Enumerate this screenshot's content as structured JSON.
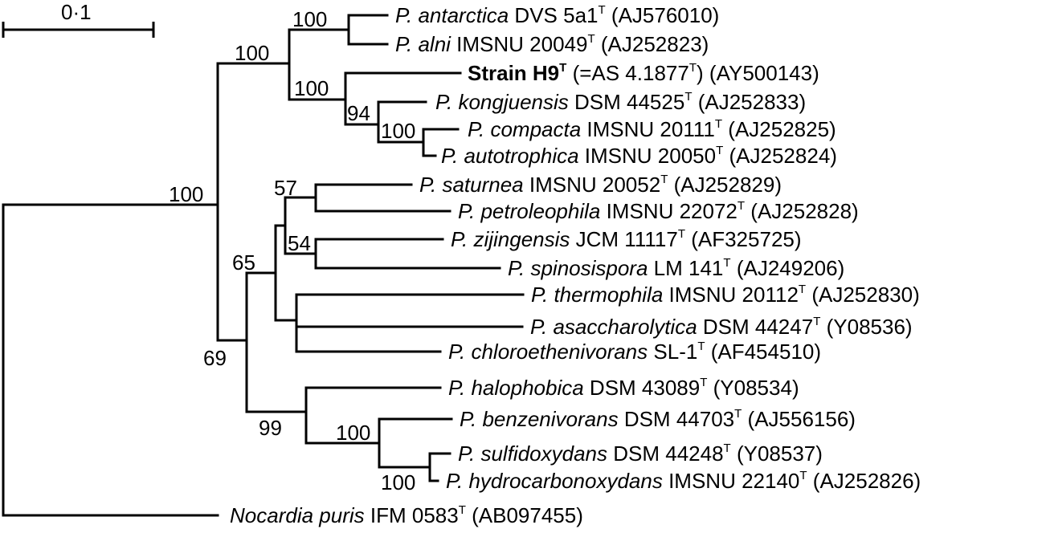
{
  "scale_bar": {
    "label": "0·1"
  },
  "bootstrap": {
    "b_root_upper": "100",
    "b_group1": "100",
    "b_antarctica_alni": "100",
    "b_h9_clade": "100",
    "b_kong_clade": "94",
    "b_compacta_auto": "100",
    "b_lower_clade": "69",
    "b_mid_clade": "65",
    "b_saturn_spino": "57",
    "b_ziji_spino": "54",
    "b_halo_clade": "99",
    "b_benz_clade": "100",
    "b_sulf_hydro": "100"
  },
  "taxa": [
    {
      "id": "antarctica",
      "genus": "P.",
      "species": "antarctica",
      "strain": "DVS 5a1",
      "type_mark": "T",
      "accession": "(AJ576010)"
    },
    {
      "id": "alni",
      "genus": "P.",
      "species": "alni",
      "strain": "IMSNU 20049",
      "type_mark": "T",
      "accession": "(AJ252823)"
    },
    {
      "id": "h9",
      "name": "Strain H9",
      "type_mark": "T",
      "eq_open": "(=AS 4.1877",
      "eq_close": ")",
      "accession": "(AY500143)"
    },
    {
      "id": "kongjuensis",
      "genus": "P.",
      "species": "kongjuensis",
      "strain": "DSM 44525",
      "type_mark": "T",
      "accession": "(AJ252833)"
    },
    {
      "id": "compacta",
      "genus": "P.",
      "species": "compacta",
      "strain": "IMSNU 20111",
      "type_mark": "T",
      "accession": "(AJ252825)"
    },
    {
      "id": "autotrophica",
      "genus": "P.",
      "species": "autotrophica",
      "strain": "IMSNU 20050",
      "type_mark": "T",
      "accession": "(AJ252824)"
    },
    {
      "id": "saturnea",
      "genus": "P.",
      "species": "saturnea",
      "strain": "IMSNU 20052",
      "type_mark": "T",
      "accession": "(AJ252829)"
    },
    {
      "id": "petroleophila",
      "genus": "P.",
      "species": "petroleophila",
      "strain": "IMSNU 22072",
      "type_mark": "T",
      "accession": "(AJ252828)"
    },
    {
      "id": "zijingensis",
      "genus": "P.",
      "species": "zijingensis",
      "strain": "JCM 11117",
      "type_mark": "T",
      "accession": "(AF325725)"
    },
    {
      "id": "spinosispora",
      "genus": "P.",
      "species": "spinosispora",
      "strain": "LM 141",
      "type_mark": "T",
      "accession": "(AJ249206)"
    },
    {
      "id": "thermophila",
      "genus": "P.",
      "species": "thermophila",
      "strain": "IMSNU 20112",
      "type_mark": "T",
      "accession": "(AJ252830)"
    },
    {
      "id": "asaccharolytica",
      "genus": "P.",
      "species": "asaccharolytica",
      "strain": "DSM 44247",
      "type_mark": "T",
      "accession": "(Y08536)"
    },
    {
      "id": "chloroethenivorans",
      "genus": "P.",
      "species": "chloroethenivorans",
      "strain": "SL-1",
      "type_mark": "T",
      "accession": "(AF454510)"
    },
    {
      "id": "halophobica",
      "genus": "P.",
      "species": "halophobica",
      "strain": "DSM 43089",
      "type_mark": "T",
      "accession": "(Y08534)"
    },
    {
      "id": "benzenivorans",
      "genus": "P.",
      "species": "benzenivorans",
      "strain": "DSM 44703",
      "type_mark": "T",
      "accession": "(AJ556156)"
    },
    {
      "id": "sulfidoxydans",
      "genus": "P.",
      "species": "sulfidoxydans",
      "strain": "DSM 44248",
      "type_mark": "T",
      "accession": "(Y08537)"
    },
    {
      "id": "hydrocarbonoxydans",
      "genus": "P.",
      "species": "hydrocarbonoxydans",
      "strain": "IMSNU 22140",
      "type_mark": "T",
      "accession": "(AJ252826)"
    },
    {
      "id": "nocardia",
      "genus": "Nocardia",
      "species": "puris",
      "strain": "IFM 0583",
      "type_mark": "T",
      "accession": "(AB097455)"
    }
  ]
}
